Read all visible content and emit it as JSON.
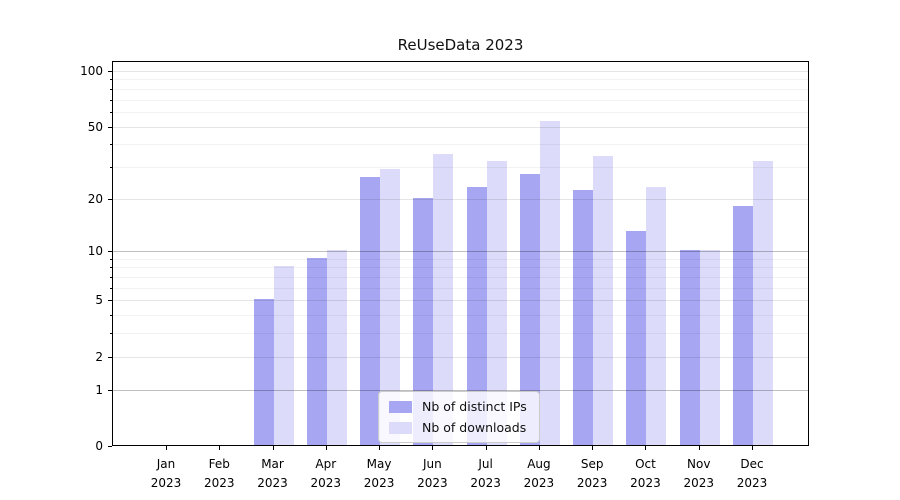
{
  "title": "ReUseData 2023",
  "colors": {
    "ips_bar": "#a6a6f2",
    "downloads_bar": "#dcdcfa",
    "grid_major": "rgba(0,0,0,0.25)",
    "grid_labeled": "rgba(0,0,0,0.10)",
    "grid_minor": "rgba(0,0,0,0.05)",
    "spine": "#000000"
  },
  "legend": {
    "items": [
      {
        "label": "Nb of distinct IPs"
      },
      {
        "label": "Nb of downloads"
      }
    ]
  },
  "chart_data": {
    "type": "bar",
    "title": "ReUseData 2023",
    "categories": [
      "Jan 2023",
      "Feb 2023",
      "Mar 2023",
      "Apr 2023",
      "May 2023",
      "Jun 2023",
      "Jul 2023",
      "Aug 2023",
      "Sep 2023",
      "Oct 2023",
      "Nov 2023",
      "Dec 2023"
    ],
    "series": [
      {
        "name": "Nb of distinct IPs",
        "color": "#a6a6f2",
        "values": [
          0,
          0,
          5,
          9,
          26,
          20,
          23,
          27,
          22,
          13,
          10,
          18
        ]
      },
      {
        "name": "Nb of downloads",
        "color": "#dcdcfa",
        "values": [
          0,
          0,
          8,
          10,
          29,
          35,
          32,
          53,
          34,
          23,
          10,
          32
        ]
      }
    ],
    "xlabel": "",
    "ylabel": "",
    "yscale": "log1p",
    "yticks": [
      0,
      1,
      2,
      5,
      10,
      20,
      50,
      100
    ],
    "minor_yticks": [
      3,
      4,
      6,
      7,
      8,
      9,
      30,
      40,
      60,
      70,
      80,
      90
    ],
    "ylim": [
      0,
      113
    ],
    "grid": true,
    "grid_over_bars": true,
    "legend_position": "lower center"
  }
}
